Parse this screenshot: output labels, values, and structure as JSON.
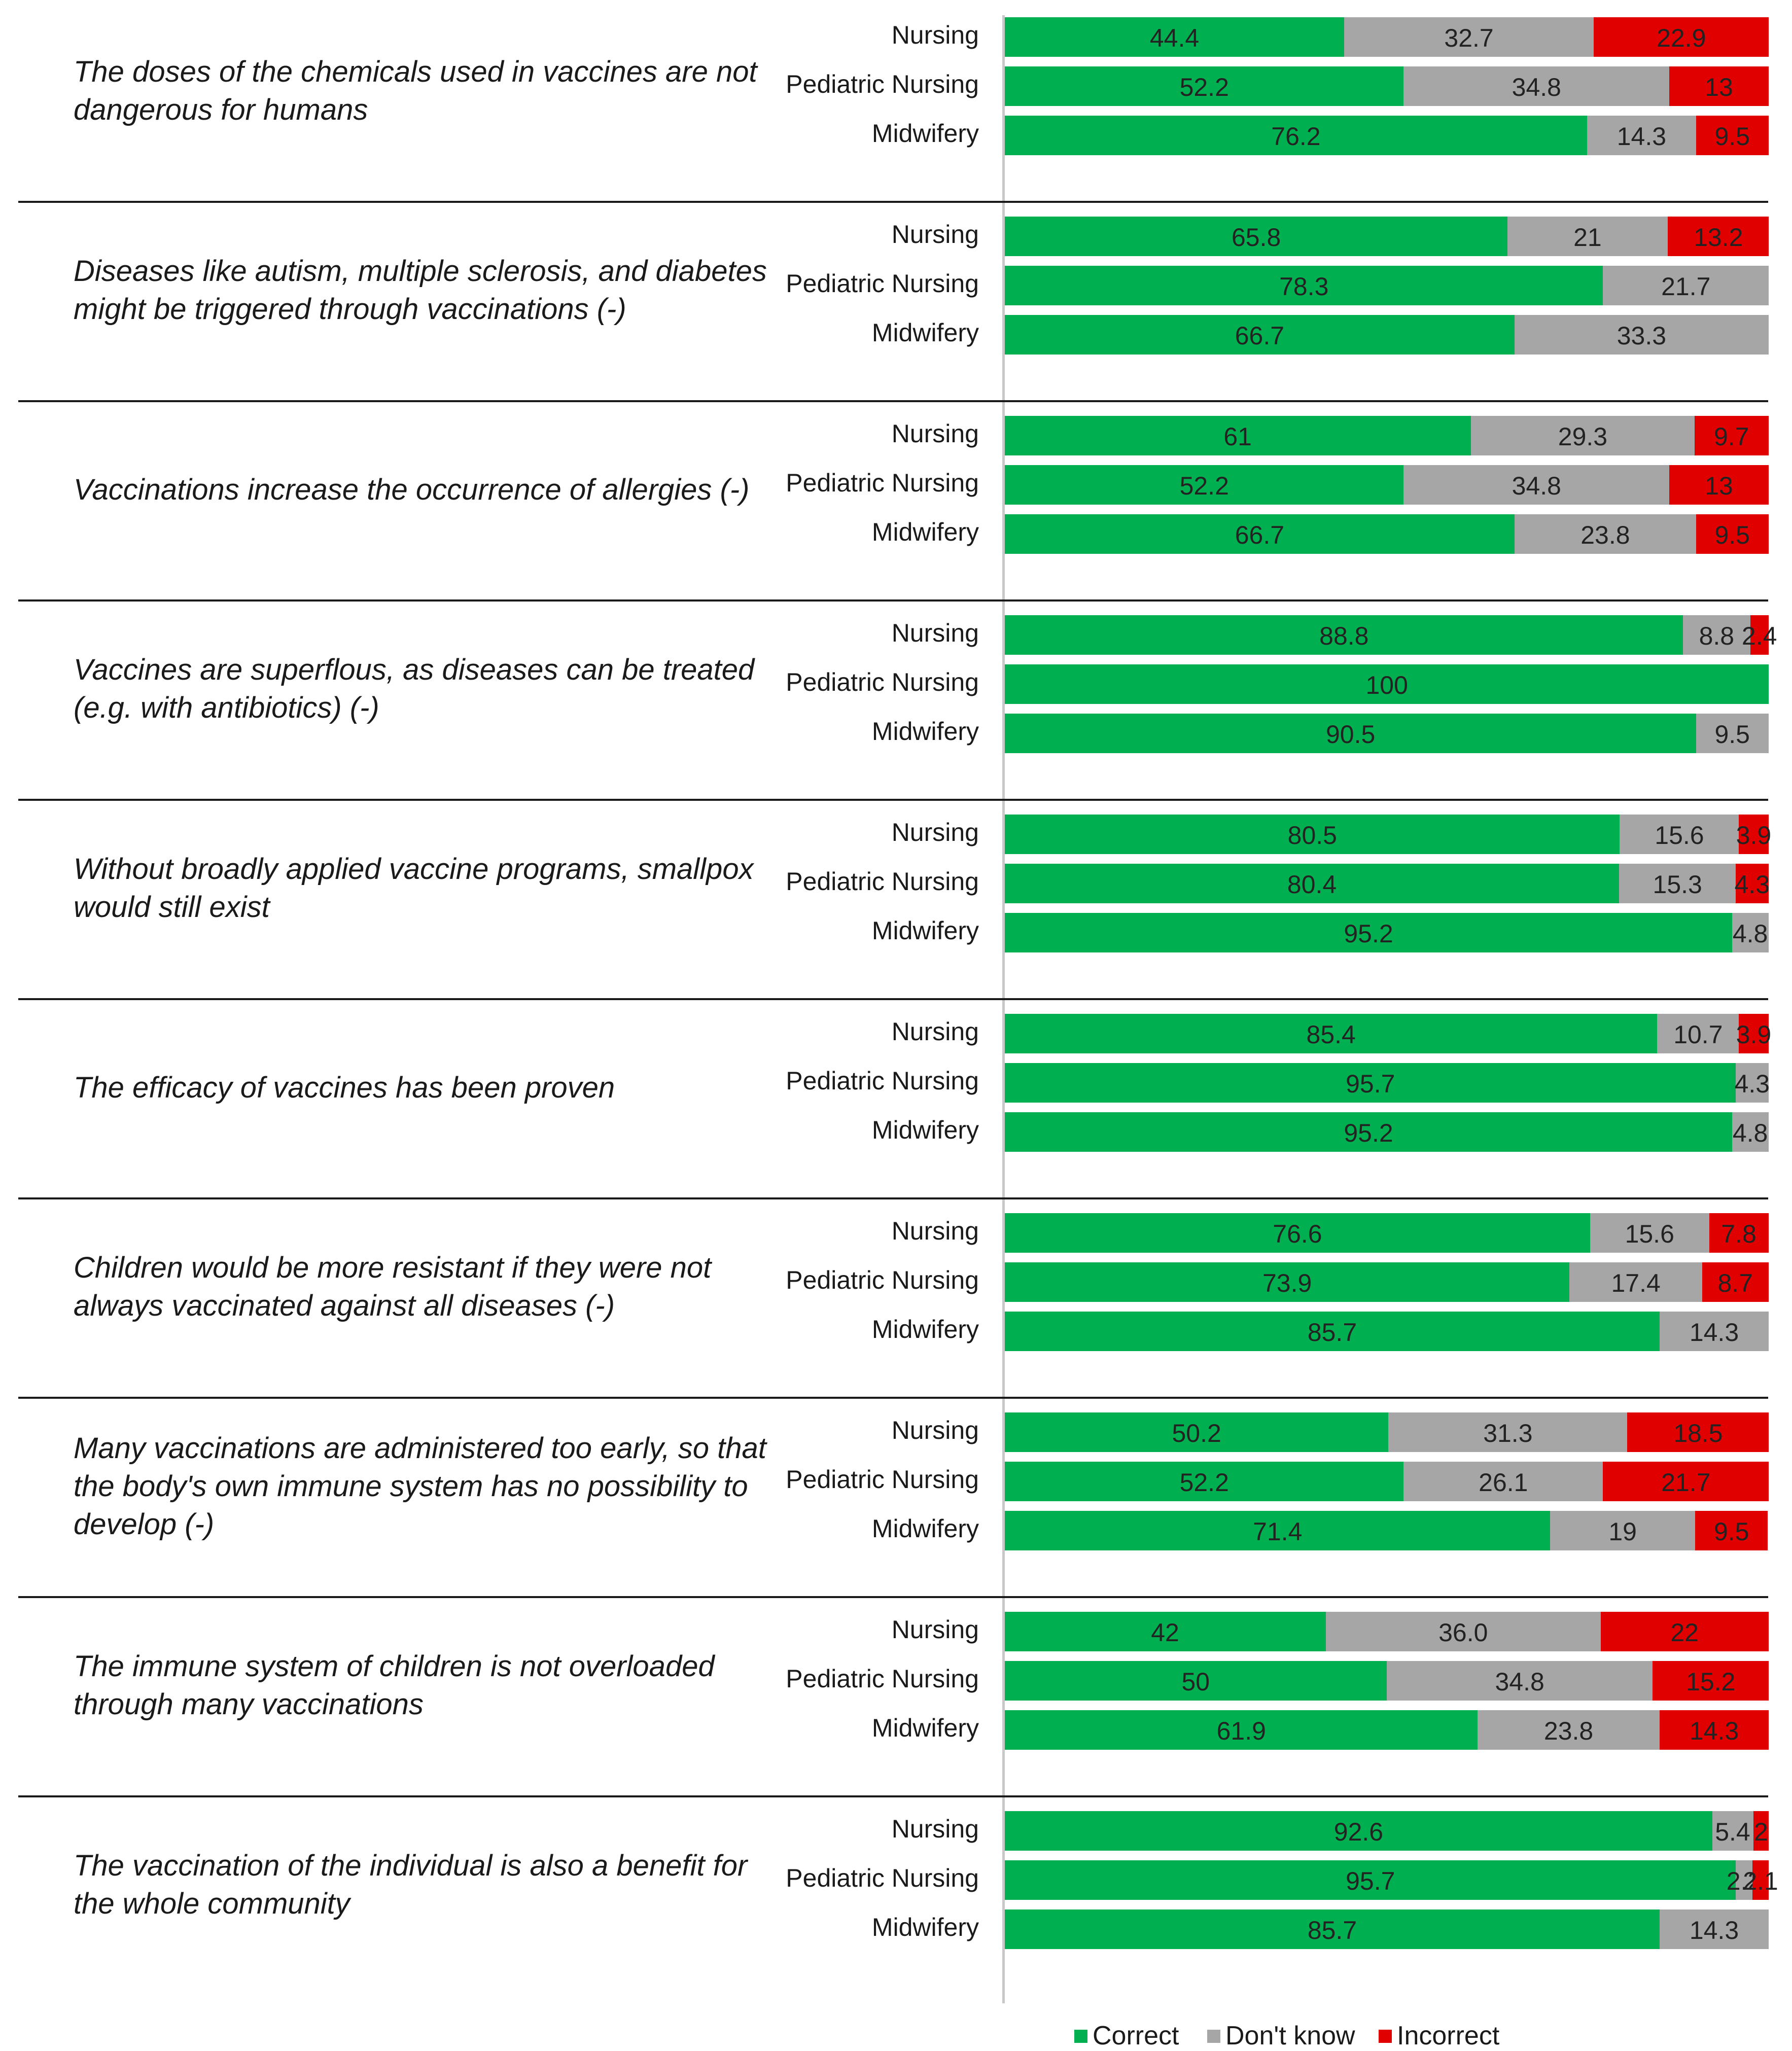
{
  "chart_data": {
    "type": "stacked-bar-horizontal",
    "title": "",
    "value_unit": "%",
    "xlim": [
      0,
      100
    ],
    "series": [
      {
        "name": "Correct",
        "color": "#00b050"
      },
      {
        "name": "Don't know",
        "color": "#a6a6a6"
      },
      {
        "name": "Incorrect",
        "color": "#e00000"
      }
    ],
    "items": [
      {
        "statement": "The doses of the chemicals used in vaccines are not dangerous for humans",
        "groups": [
          {
            "label": "Nursing",
            "values": [
              44.4,
              32.7,
              22.9
            ],
            "labels": [
              "44.4",
              "32.7",
              "22.9"
            ]
          },
          {
            "label": "Pediatric Nursing",
            "values": [
              52.2,
              34.8,
              13
            ],
            "labels": [
              "52.2",
              "34.8",
              "13"
            ]
          },
          {
            "label": "Midwifery",
            "values": [
              76.2,
              14.3,
              9.5
            ],
            "labels": [
              "76.2",
              "14.3",
              "9.5"
            ]
          }
        ]
      },
      {
        "statement": "Diseases like autism, multiple sclerosis, and diabetes might be triggered through vaccinations (-)",
        "groups": [
          {
            "label": "Nursing",
            "values": [
              65.8,
              21,
              13.2
            ],
            "labels": [
              "65.8",
              "21",
              "13.2"
            ]
          },
          {
            "label": "Pediatric Nursing",
            "values": [
              78.3,
              21.7,
              0
            ],
            "labels": [
              "78.3",
              "21.7",
              ""
            ]
          },
          {
            "label": "Midwifery",
            "values": [
              66.7,
              33.3,
              0
            ],
            "labels": [
              "66.7",
              "33.3",
              ""
            ]
          }
        ]
      },
      {
        "statement": "Vaccinations increase the occurrence of allergies (-)",
        "groups": [
          {
            "label": "Nursing",
            "values": [
              61,
              29.3,
              9.7
            ],
            "labels": [
              "61",
              "29.3",
              "9.7"
            ]
          },
          {
            "label": "Pediatric Nursing",
            "values": [
              52.2,
              34.8,
              13
            ],
            "labels": [
              "52.2",
              "34.8",
              "13"
            ]
          },
          {
            "label": "Midwifery",
            "values": [
              66.7,
              23.8,
              9.5
            ],
            "labels": [
              "66.7",
              "23.8",
              "9.5"
            ]
          }
        ]
      },
      {
        "statement": "Vaccines are superflous, as diseases can be treated (e.g. with antibiotics) (-)",
        "groups": [
          {
            "label": "Nursing",
            "values": [
              88.8,
              8.8,
              2.4
            ],
            "labels": [
              "88.8",
              "8.8",
              "2.4"
            ]
          },
          {
            "label": "Pediatric Nursing",
            "values": [
              100,
              0,
              0
            ],
            "labels": [
              "100",
              "",
              ""
            ]
          },
          {
            "label": "Midwifery",
            "values": [
              90.5,
              9.5,
              0
            ],
            "labels": [
              "90.5",
              "9.5",
              ""
            ]
          }
        ]
      },
      {
        "statement": "Without broadly applied vaccine programs, smallpox would still exist",
        "groups": [
          {
            "label": "Nursing",
            "values": [
              80.5,
              15.6,
              3.9
            ],
            "labels": [
              "80.5",
              "15.6",
              "3.9"
            ]
          },
          {
            "label": "Pediatric Nursing",
            "values": [
              80.4,
              15.3,
              4.3
            ],
            "labels": [
              "80.4",
              "15.3",
              "4.3"
            ]
          },
          {
            "label": "Midwifery",
            "values": [
              95.2,
              4.8,
              0
            ],
            "labels": [
              "95.2",
              "4.8",
              ""
            ]
          }
        ]
      },
      {
        "statement": "The efficacy of vaccines has been proven",
        "groups": [
          {
            "label": "Nursing",
            "values": [
              85.4,
              10.7,
              3.9
            ],
            "labels": [
              "85.4",
              "10.7",
              "3.9"
            ]
          },
          {
            "label": "Pediatric Nursing",
            "values": [
              95.7,
              4.3,
              0
            ],
            "labels": [
              "95.7",
              "4.3",
              ""
            ]
          },
          {
            "label": "Midwifery",
            "values": [
              95.2,
              4.8,
              0
            ],
            "labels": [
              "95.2",
              "4.8",
              ""
            ]
          }
        ]
      },
      {
        "statement": "Children would be more resistant if they were not always vaccinated against all diseases (-)",
        "groups": [
          {
            "label": "Nursing",
            "values": [
              76.6,
              15.6,
              7.8
            ],
            "labels": [
              "76.6",
              "15.6",
              "7.8"
            ]
          },
          {
            "label": "Pediatric Nursing",
            "values": [
              73.9,
              17.4,
              8.7
            ],
            "labels": [
              "73.9",
              "17.4",
              "8.7"
            ]
          },
          {
            "label": "Midwifery",
            "values": [
              85.7,
              14.3,
              0
            ],
            "labels": [
              "85.7",
              "14.3",
              ""
            ]
          }
        ]
      },
      {
        "statement": "Many vaccinations are administered too early, so that the body's own immune system has no possibility to develop (-)",
        "groups": [
          {
            "label": "Nursing",
            "values": [
              50.2,
              31.3,
              18.5
            ],
            "labels": [
              "50.2",
              "31.3",
              "18.5"
            ]
          },
          {
            "label": "Pediatric Nursing",
            "values": [
              52.2,
              26.1,
              21.7
            ],
            "labels": [
              "52.2",
              "26.1",
              "21.7"
            ]
          },
          {
            "label": "Midwifery",
            "values": [
              71.4,
              19,
              9.5
            ],
            "labels": [
              "71.4",
              "19",
              "9.5"
            ]
          }
        ]
      },
      {
        "statement": "The immune system of children is not overloaded through many vaccinations",
        "groups": [
          {
            "label": "Nursing",
            "values": [
              42,
              36.0,
              22
            ],
            "labels": [
              "42",
              "36.0",
              "22"
            ]
          },
          {
            "label": "Pediatric Nursing",
            "values": [
              50,
              34.8,
              15.2
            ],
            "labels": [
              "50",
              "34.8",
              "15.2"
            ]
          },
          {
            "label": "Midwifery",
            "values": [
              61.9,
              23.8,
              14.3
            ],
            "labels": [
              "61.9",
              "23.8",
              "14.3"
            ]
          }
        ]
      },
      {
        "statement": "The vaccination of the individual is also a benefit for the whole community",
        "groups": [
          {
            "label": "Nursing",
            "values": [
              92.6,
              5.4,
              2
            ],
            "labels": [
              "92.6",
              "5.4",
              "2"
            ]
          },
          {
            "label": "Pediatric Nursing",
            "values": [
              95.7,
              2.2,
              2.1
            ],
            "labels": [
              "95.7",
              "2.2",
              "2.1"
            ]
          },
          {
            "label": "Midwifery",
            "values": [
              85.7,
              14.3,
              0
            ],
            "labels": [
              "85.7",
              "14.3",
              ""
            ]
          }
        ]
      }
    ],
    "legend": {
      "position": "bottom",
      "entries": [
        "Correct",
        "Don't know",
        "Incorrect"
      ]
    }
  }
}
